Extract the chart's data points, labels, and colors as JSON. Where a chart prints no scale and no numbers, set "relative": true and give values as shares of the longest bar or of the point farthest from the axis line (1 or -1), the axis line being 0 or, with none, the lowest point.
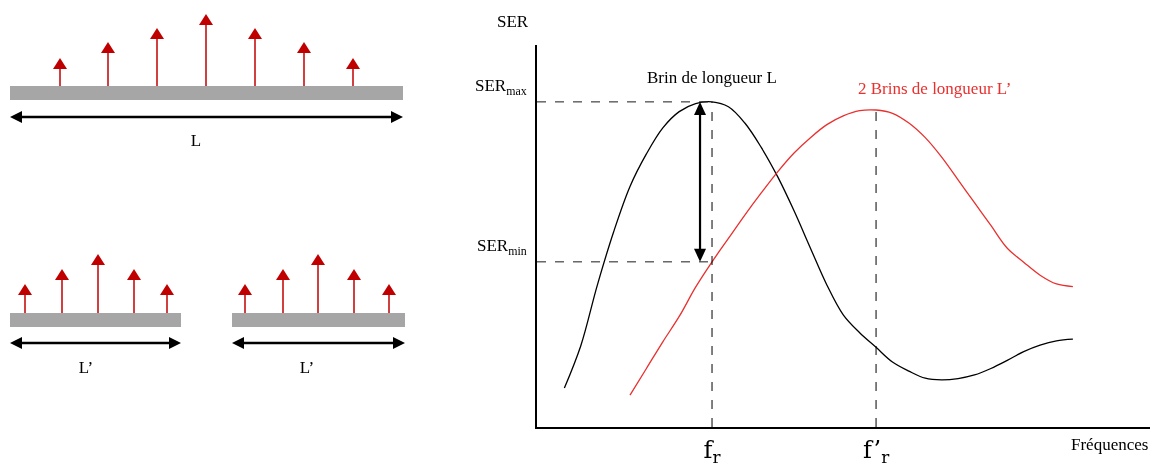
{
  "chart_data": {
    "type": "line",
    "relative": true,
    "ylabel": "SER",
    "xlabel": "Fréquences",
    "categories": [
      null,
      null,
      null,
      null,
      null,
      null,
      null,
      null,
      null,
      null,
      "f$_{r}$",
      null,
      null,
      null,
      null,
      null,
      null,
      null,
      null,
      null,
      "f’$_{r}$",
      null,
      null,
      null,
      null,
      null,
      null,
      null,
      null,
      null,
      null,
      null,
      null,
      null,
      null,
      null,
      null
    ],
    "series": [
      {
        "name": "Brin de longueur L",
        "color": "#000000",
        "values": [
          null,
          0.12,
          0.25,
          0.435,
          0.6,
          0.74,
          0.84,
          0.92,
          0.97,
          0.995,
          1.0,
          0.985,
          0.935,
          0.86,
          0.77,
          0.665,
          0.55,
          0.437,
          0.345,
          0.29,
          0.245,
          0.2,
          0.172,
          0.15,
          0.145,
          0.149,
          0.16,
          0.18,
          0.205,
          0.232,
          0.252,
          0.265,
          0.27,
          null,
          null,
          null,
          null
        ]
      },
      {
        "name": "2 Brins de longueur L’",
        "color": "#e8302e",
        "values": [
          null,
          null,
          null,
          null,
          null,
          0.098,
          0.18,
          0.262,
          0.34,
          0.43,
          0.508,
          0.58,
          0.652,
          0.72,
          0.785,
          0.843,
          0.89,
          0.93,
          0.957,
          0.973,
          0.975,
          0.965,
          0.935,
          0.89,
          0.83,
          0.76,
          0.69,
          0.62,
          0.55,
          0.507,
          0.467,
          0.44,
          0.432,
          null,
          null,
          null,
          null
        ]
      }
    ],
    "ref_lines": [
      {
        "axis": "y",
        "value": 1.0,
        "label": "SER$_{max}$",
        "line_style": "dashed",
        "color": "#1a1a1a"
      },
      {
        "axis": "y",
        "value": 0.508,
        "label": "SER$_{min}$",
        "line_style": "dashed",
        "color": "#1a1a1a"
      },
      {
        "axis": "x",
        "value": "f$_{r}$",
        "line_style": "dashed",
        "color": "#000000"
      },
      {
        "axis": "x",
        "value": "f’$_{r}$",
        "line_style": "dashed",
        "color": "#000000"
      }
    ],
    "annotations": [
      "L",
      "L’",
      "L’"
    ],
    "grid": false,
    "legend": false,
    "marker": "none",
    "line_style": "solid"
  }
}
